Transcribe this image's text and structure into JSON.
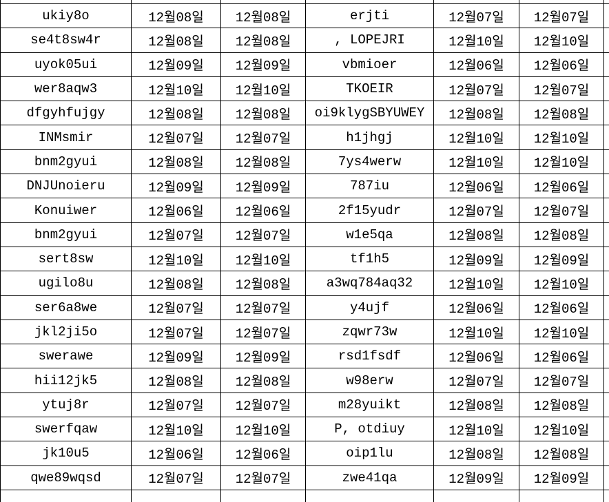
{
  "table": {
    "description_labels": {},
    "rows": [
      [
        "ukiy8o",
        "12월08일",
        "12월08일",
        "erjti",
        "12월07일",
        "12월07일"
      ],
      [
        "se4t8sw4r",
        "12월08일",
        "12월08일",
        ", LOPEJRI",
        "12월10일",
        "12월10일"
      ],
      [
        "uyok05ui",
        "12월09일",
        "12월09일",
        "vbmioer",
        "12월06일",
        "12월06일"
      ],
      [
        "wer8aqw3",
        "12월10일",
        "12월10일",
        "TKOEIR",
        "12월07일",
        "12월07일"
      ],
      [
        "dfgyhfujgy",
        "12월08일",
        "12월08일",
        "oi9klygSBYUWEY",
        "12월08일",
        "12월08일"
      ],
      [
        "INMsmir",
        "12월07일",
        "12월07일",
        "h1jhgj",
        "12월10일",
        "12월10일"
      ],
      [
        "bnm2gyui",
        "12월08일",
        "12월08일",
        "7ys4werw",
        "12월10일",
        "12월10일"
      ],
      [
        "DNJUnoieru",
        "12월09일",
        "12월09일",
        "787iu",
        "12월06일",
        "12월06일"
      ],
      [
        "Konuiwer",
        "12월06일",
        "12월06일",
        "2f15yudr",
        "12월07일",
        "12월07일"
      ],
      [
        "bnm2gyui",
        "12월07일",
        "12월07일",
        "w1e5qa",
        "12월08일",
        "12월08일"
      ],
      [
        "sert8sw",
        "12월10일",
        "12월10일",
        "tf1h5",
        "12월09일",
        "12월09일"
      ],
      [
        "ugilo8u",
        "12월08일",
        "12월08일",
        "a3wq784aq32",
        "12월10일",
        "12월10일"
      ],
      [
        "ser6a8we",
        "12월07일",
        "12월07일",
        "y4ujf",
        "12월06일",
        "12월06일"
      ],
      [
        "jkl2ji5o",
        "12월07일",
        "12월07일",
        "zqwr73w",
        "12월10일",
        "12월10일"
      ],
      [
        "swerawe",
        "12월09일",
        "12월09일",
        "rsd1fsdf",
        "12월06일",
        "12월06일"
      ],
      [
        "hii12jk5",
        "12월08일",
        "12월08일",
        "w98erw",
        "12월07일",
        "12월07일"
      ],
      [
        "ytuj8r",
        "12월07일",
        "12월07일",
        "m28yuikt",
        "12월08일",
        "12월08일"
      ],
      [
        "swerfqaw",
        "12월10일",
        "12월10일",
        "P, otdiuy",
        "12월10일",
        "12월10일"
      ],
      [
        "jk10u5",
        "12월06일",
        "12월06일",
        "oip1lu",
        "12월08일",
        "12월08일"
      ],
      [
        "qwe89wqsd",
        "12월07일",
        "12월07일",
        "zwe41qa",
        "12월09일",
        "12월09일"
      ]
    ],
    "grid_line_color": "#000000",
    "cell_background": "#ffffff",
    "text_color": "#000000"
  }
}
